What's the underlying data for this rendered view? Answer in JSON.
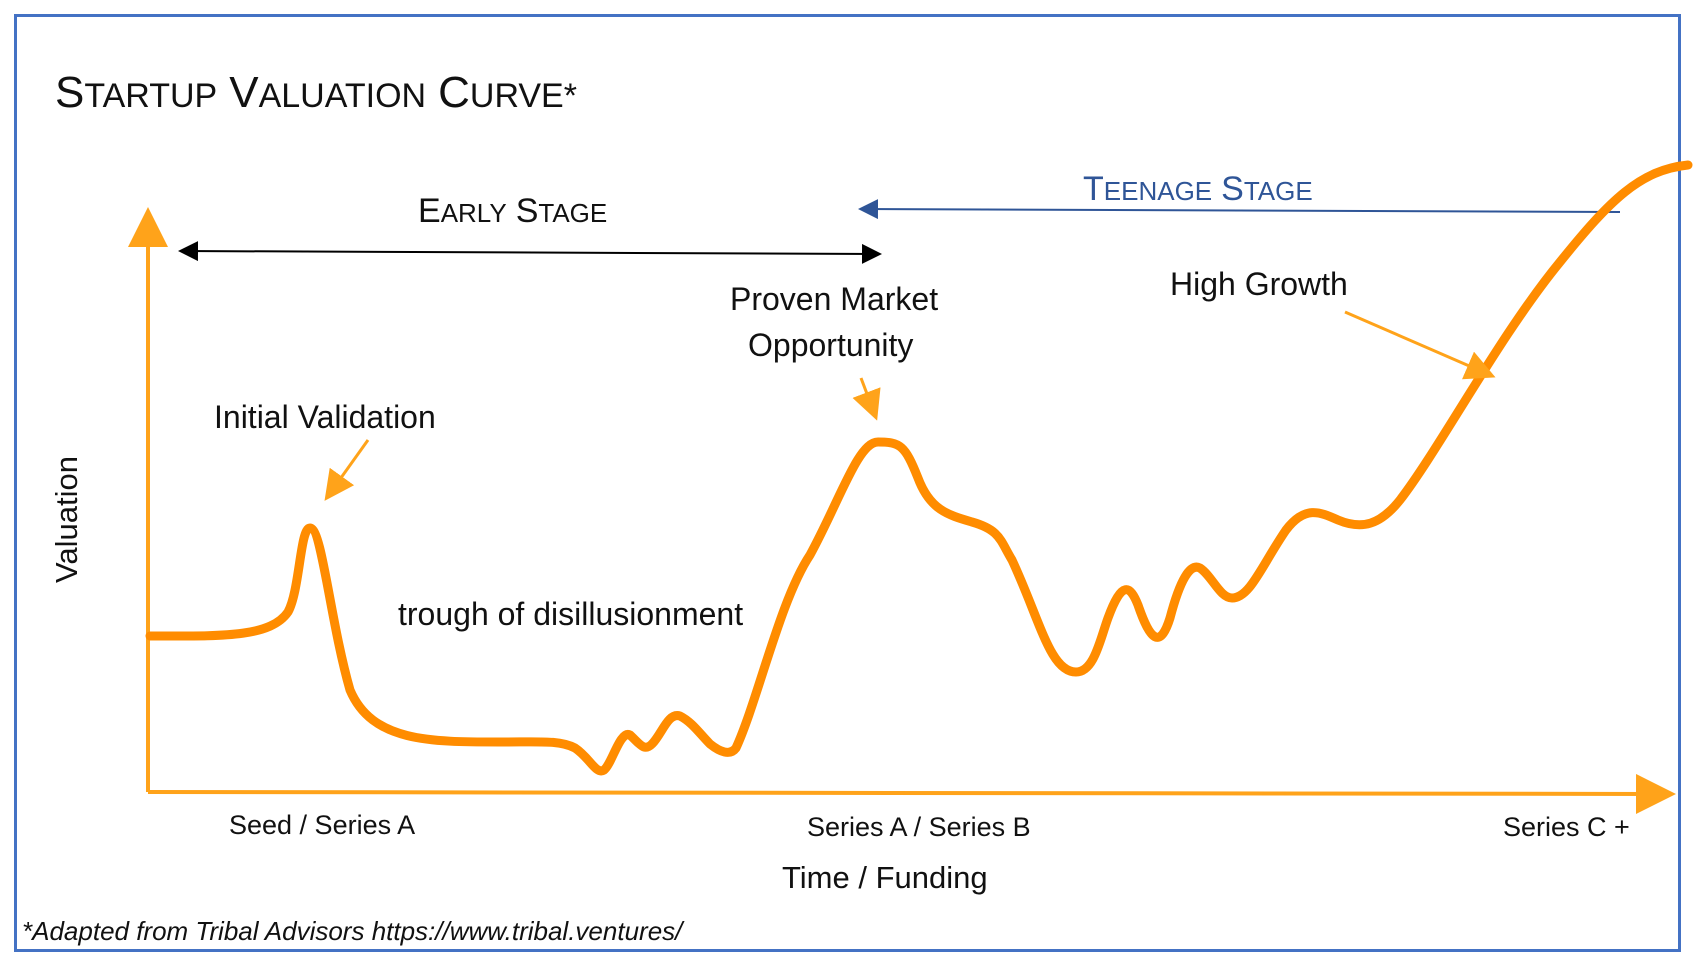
{
  "title": {
    "S": "S",
    "TARTUP": "TARTUP",
    "V": "V",
    "ALUATION": "ALUATION",
    "C": "C",
    "URVE": "URVE",
    "star": "*"
  },
  "early_stage": {
    "E": "E",
    "ARLY": "ARLY",
    "S": "S",
    "TAGE": "TAGE"
  },
  "teenage_stage": {
    "T": "T",
    "EENAGE": "EENAGE",
    "S": "S",
    "TAGE": "TAGE"
  },
  "annotations": {
    "initial_validation": "Initial Validation",
    "proven_market_1": "Proven Market",
    "proven_market_2": "Opportunity",
    "high_growth": "High Growth",
    "trough": "trough of disillusionment"
  },
  "axes": {
    "y_label": "Valuation",
    "x_label": "Time / Funding",
    "x_ticks": [
      "Seed / Series A",
      "Series A / Series B",
      "Series C +"
    ]
  },
  "footnote": "*Adapted from Tribal Advisors https://www.tribal.ventures/",
  "colors": {
    "curve": "#FF8C00",
    "axis": "#FFA31A",
    "border": "#4472C4",
    "teenage": "#2F5597",
    "early_arrow": "#000000"
  }
}
